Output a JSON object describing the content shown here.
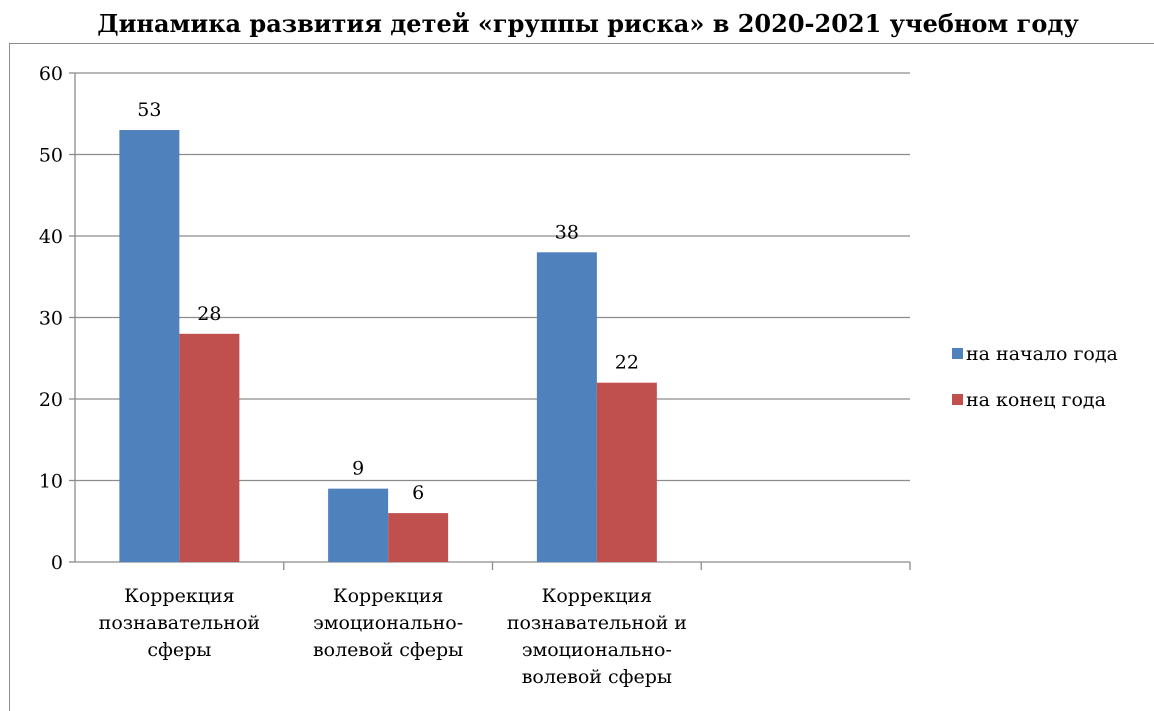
{
  "chart_data": {
    "type": "bar",
    "title": "Динамика развития детей «группы риска» в 2020-2021 учебном году",
    "xlabel": "",
    "ylabel": "",
    "ylim": [
      0,
      60
    ],
    "yticks": [
      0,
      10,
      20,
      30,
      40,
      50,
      60
    ],
    "grid": true,
    "legend_position": "right",
    "categories": [
      "Коррекция познавательной сферы",
      "Коррекция эмоционально-волевой сферы",
      "Коррекция познавательной и эмоционально-волевой сферы"
    ],
    "category_label_lines": [
      [
        "Коррекция",
        "познавательной",
        "сферы"
      ],
      [
        "Коррекция",
        "эмоционально-",
        "волевой сферы"
      ],
      [
        "Коррекция",
        "познавательной и",
        "эмоционально-",
        "волевой сферы"
      ]
    ],
    "series": [
      {
        "name": "на начало года",
        "color": "#4F81BD",
        "values": [
          53,
          9,
          38
        ]
      },
      {
        "name": "на конец года",
        "color": "#C0504D",
        "values": [
          28,
          6,
          22
        ]
      }
    ]
  }
}
